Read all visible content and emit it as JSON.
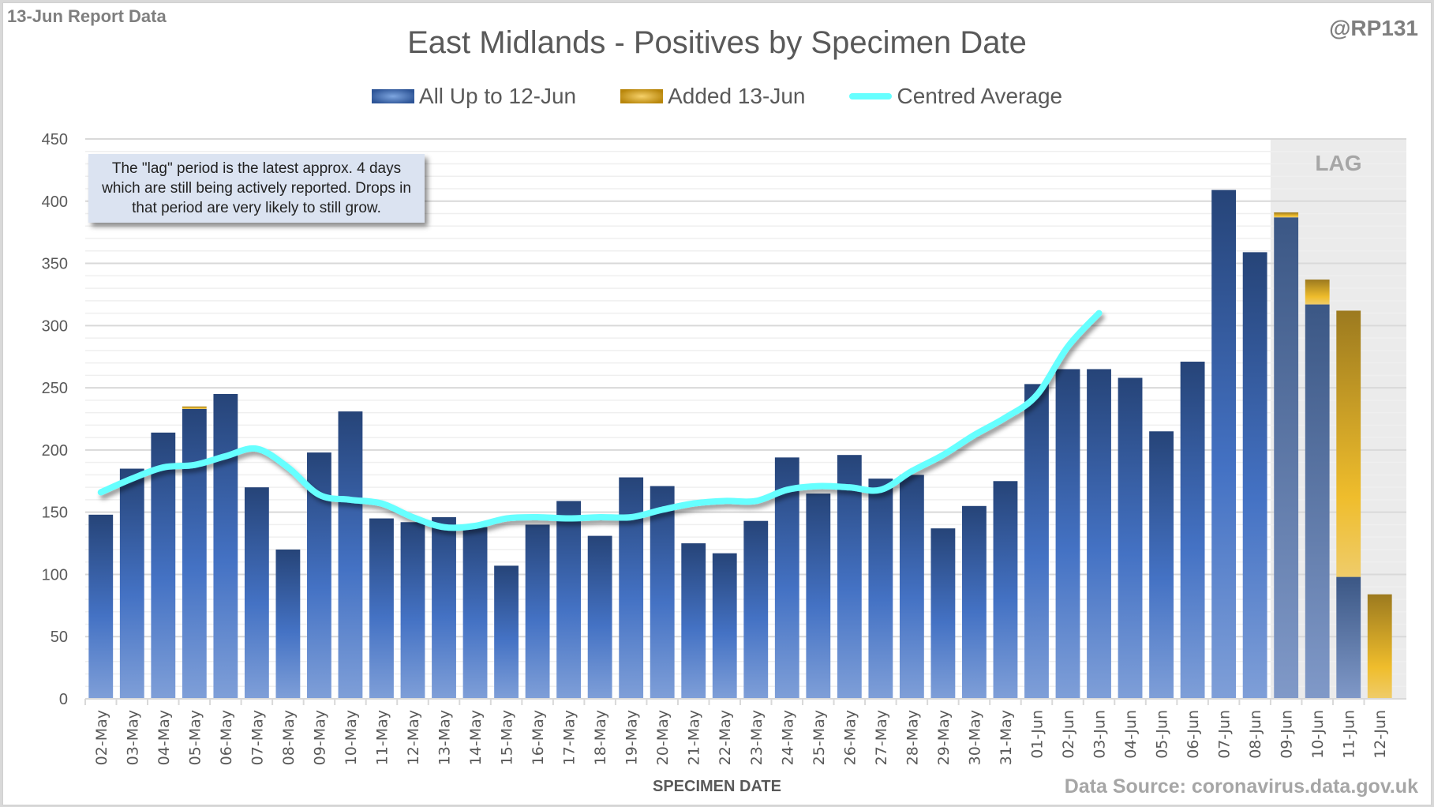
{
  "header": {
    "report_tag": "13-Jun Report Data",
    "handle": "@RP131",
    "title": "East Midlands - Positives by Specimen Date"
  },
  "legend": [
    {
      "label": "All Up to 12-Jun",
      "icon": "blue-bar-swatch"
    },
    {
      "label": "Added 13-Jun",
      "icon": "gold-bar-swatch"
    },
    {
      "label": "Centred Average",
      "icon": "cyan-line-swatch"
    }
  ],
  "note": "The \"lag\" period is the latest approx. 4 days which are still being actively reported. Drops in that period are very likely to still grow.",
  "lag_label": "LAG",
  "footer": {
    "source": "Data Source: coronavirus.data.gov.uk"
  },
  "colors": {
    "bar_top": "#264478",
    "bar_bottom": "#7f9fd8",
    "added_top": "#9c7a1f",
    "added_bottom": "#efc43a",
    "average_line": "#66ffff",
    "lag_shade": "#ebebeb"
  },
  "chart_data": {
    "type": "bar",
    "title": "East Midlands - Positives by Specimen Date",
    "xlabel": "SPECIMEN DATE",
    "ylabel": "",
    "ylim": [
      0,
      450
    ],
    "yticks": [
      0,
      50,
      100,
      150,
      200,
      250,
      300,
      350,
      400,
      450
    ],
    "grid": true,
    "legend_position": "top",
    "stacked": true,
    "lag_categories": [
      "09-Jun",
      "10-Jun",
      "11-Jun",
      "12-Jun"
    ],
    "categories": [
      "02-May",
      "03-May",
      "04-May",
      "05-May",
      "06-May",
      "07-May",
      "08-May",
      "09-May",
      "10-May",
      "11-May",
      "12-May",
      "13-May",
      "14-May",
      "15-May",
      "16-May",
      "17-May",
      "18-May",
      "19-May",
      "20-May",
      "21-May",
      "22-May",
      "23-May",
      "24-May",
      "25-May",
      "26-May",
      "27-May",
      "28-May",
      "29-May",
      "30-May",
      "31-May",
      "01-Jun",
      "02-Jun",
      "03-Jun",
      "04-Jun",
      "05-Jun",
      "06-Jun",
      "07-Jun",
      "08-Jun",
      "09-Jun",
      "10-Jun",
      "11-Jun",
      "12-Jun"
    ],
    "series": [
      {
        "name": "All Up to 12-Jun",
        "type": "bar",
        "values": [
          148,
          185,
          214,
          233,
          245,
          170,
          120,
          198,
          231,
          145,
          142,
          146,
          138,
          107,
          140,
          159,
          131,
          178,
          171,
          125,
          117,
          143,
          194,
          165,
          196,
          177,
          180,
          137,
          155,
          175,
          253,
          265,
          265,
          258,
          215,
          271,
          409,
          359,
          387,
          317,
          98,
          0
        ]
      },
      {
        "name": "Added 13-Jun",
        "type": "bar",
        "values": [
          0,
          0,
          0,
          2,
          0,
          0,
          0,
          0,
          0,
          0,
          0,
          0,
          0,
          0,
          0,
          0,
          0,
          0,
          0,
          0,
          0,
          0,
          0,
          0,
          0,
          0,
          0,
          0,
          0,
          0,
          0,
          0,
          0,
          0,
          0,
          0,
          0,
          0,
          4,
          20,
          214,
          84
        ]
      },
      {
        "name": "Centred Average",
        "type": "line",
        "values": [
          166,
          177,
          186,
          188,
          195,
          201,
          186,
          164,
          160,
          157,
          146,
          138,
          139,
          145,
          146,
          145,
          146,
          146,
          152,
          157,
          159,
          159,
          168,
          171,
          170,
          168,
          183,
          196,
          212,
          226,
          244,
          283,
          310,
          null,
          null,
          null,
          null,
          null,
          null,
          null,
          null,
          null
        ]
      }
    ]
  }
}
